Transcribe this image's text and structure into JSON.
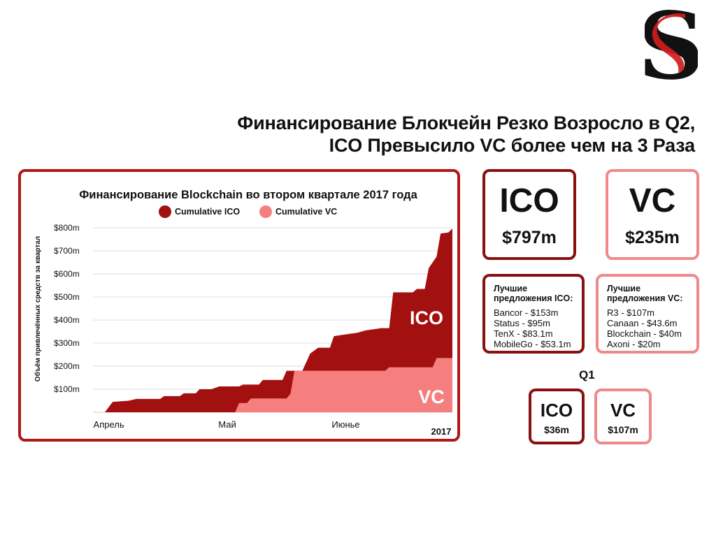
{
  "headline": {
    "line1": "Финансирование Блокчейн Резко Возросло в Q2,",
    "line2": "ICO Превысило VC более чем на 3 Раза"
  },
  "logo": {
    "letter": "S",
    "colors": {
      "black": "#111111",
      "red": "#d01c1c"
    }
  },
  "colors": {
    "ico": "#a31010",
    "vc": "#f57f7f",
    "frame_dark": "#b01717",
    "frame_light": "#f08a8a",
    "grid": "#dddddd"
  },
  "summary": {
    "ico": {
      "label": "ICO",
      "value": "$797m"
    },
    "vc": {
      "label": "VC",
      "value": "$235m"
    }
  },
  "deals": {
    "ico": {
      "title_line1": "Лучшие",
      "title_line2": "предложения ICO:",
      "items": [
        "Bancor - $153m",
        "Status - $95m",
        "TenX - $83.1m",
        "MobileGo - $53.1m"
      ]
    },
    "vc": {
      "title_line1": "Лучшие",
      "title_line2": "предложения VC:",
      "items": [
        "R3 - $107m",
        "Canaan - $43.6m",
        "Blockchain - $40m",
        "Axoni - $20m"
      ]
    }
  },
  "q1": {
    "label": "Q1",
    "ico": {
      "label": "ICO",
      "value": "$36m"
    },
    "vc": {
      "label": "VC",
      "value": "$107m"
    }
  },
  "chart_data": {
    "type": "area",
    "title": "Финансирование Blockchain во втором квартале 2017 года",
    "ylabel": "Объём привлечённых средств за квартал",
    "xlabel": "",
    "year_label": "2017",
    "x_unit": "day of Q2 2017 (0 = April 1)",
    "ylim": [
      0,
      800
    ],
    "xlim": [
      0,
      91
    ],
    "y_ticks": [
      100,
      200,
      300,
      400,
      500,
      600,
      700,
      800
    ],
    "y_tick_labels": [
      "$100m",
      "$200m",
      "$300m",
      "$400m",
      "$500m",
      "$600m",
      "$700m",
      "$800m"
    ],
    "x_ticks": [
      {
        "x": 4,
        "label": "Апрель"
      },
      {
        "x": 34,
        "label": "Май"
      },
      {
        "x": 64,
        "label": "Июнье"
      }
    ],
    "legend": [
      {
        "name": "Cumulative ICO",
        "color": "#a31010"
      },
      {
        "name": "Cumulative VC",
        "color": "#f57f7f"
      }
    ],
    "legend_position": "top-center",
    "grid": true,
    "area_labels": {
      "ico": "ICO",
      "vc": "VC"
    },
    "series": [
      {
        "name": "Cumulative ICO",
        "note": "cumulative total (ICO + VC stacked top), $m",
        "points": [
          [
            0,
            0
          ],
          [
            3,
            0
          ],
          [
            5,
            45
          ],
          [
            9,
            50
          ],
          [
            11,
            58
          ],
          [
            17,
            58
          ],
          [
            18,
            70
          ],
          [
            22,
            70
          ],
          [
            23,
            82
          ],
          [
            26,
            82
          ],
          [
            27,
            100
          ],
          [
            30,
            100
          ],
          [
            32,
            112
          ],
          [
            37,
            112
          ],
          [
            38,
            120
          ],
          [
            42,
            120
          ],
          [
            43,
            140
          ],
          [
            48,
            140
          ],
          [
            49,
            180
          ],
          [
            53,
            180
          ],
          [
            55,
            255
          ],
          [
            57,
            280
          ],
          [
            60,
            280
          ],
          [
            61,
            330
          ],
          [
            63,
            335
          ],
          [
            65,
            340
          ],
          [
            67,
            345
          ],
          [
            69,
            355
          ],
          [
            71,
            360
          ],
          [
            73,
            365
          ],
          [
            75,
            365
          ],
          [
            76,
            520
          ],
          [
            81,
            520
          ],
          [
            82,
            535
          ],
          [
            84,
            535
          ],
          [
            85,
            625
          ],
          [
            87,
            675
          ],
          [
            88,
            775
          ],
          [
            90,
            780
          ],
          [
            91,
            797
          ]
        ]
      },
      {
        "name": "Cumulative VC",
        "note": "$m",
        "points": [
          [
            0,
            0
          ],
          [
            36,
            0
          ],
          [
            37,
            40
          ],
          [
            39,
            40
          ],
          [
            40,
            60
          ],
          [
            49,
            60
          ],
          [
            50,
            80
          ],
          [
            51,
            180
          ],
          [
            74,
            180
          ],
          [
            75,
            195
          ],
          [
            86,
            195
          ],
          [
            87,
            235
          ],
          [
            91,
            235
          ]
        ]
      }
    ]
  }
}
